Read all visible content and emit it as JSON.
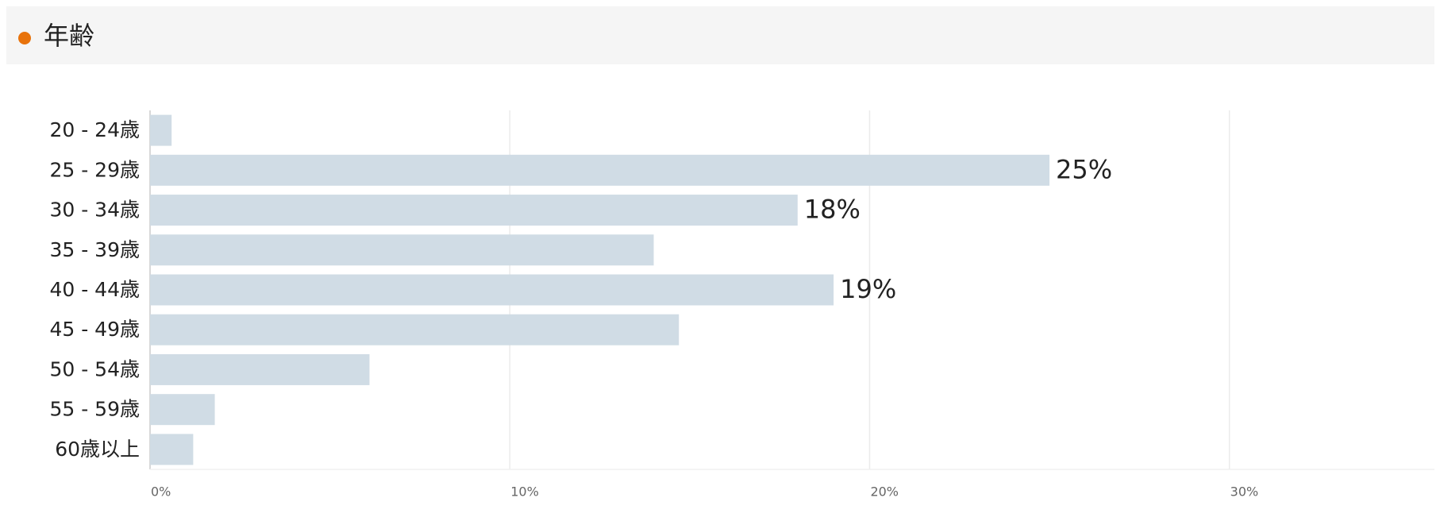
{
  "header": {
    "title": "年齢"
  },
  "chart_data": {
    "type": "bar",
    "orientation": "horizontal",
    "categories": [
      "20 - 24歳",
      "25 - 29歳",
      "30 - 34歳",
      "35 - 39歳",
      "40 - 44歳",
      "45 - 49歳",
      "50 - 54歳",
      "55 - 59歳",
      "60歳以上"
    ],
    "values": [
      0.6,
      25,
      18,
      14,
      19,
      14.7,
      6.1,
      1.8,
      1.2
    ],
    "value_labels": [
      null,
      "25%",
      "18%",
      null,
      "19%",
      null,
      null,
      null,
      null
    ],
    "color": "#d0dce5",
    "xlim": [
      0,
      35.7
    ],
    "xticks": [
      {
        "value": 0,
        "label": "0%"
      },
      {
        "value": 10,
        "label": "10%"
      },
      {
        "value": 20,
        "label": "20%"
      },
      {
        "value": 30,
        "label": "30%"
      }
    ],
    "grid": true
  }
}
